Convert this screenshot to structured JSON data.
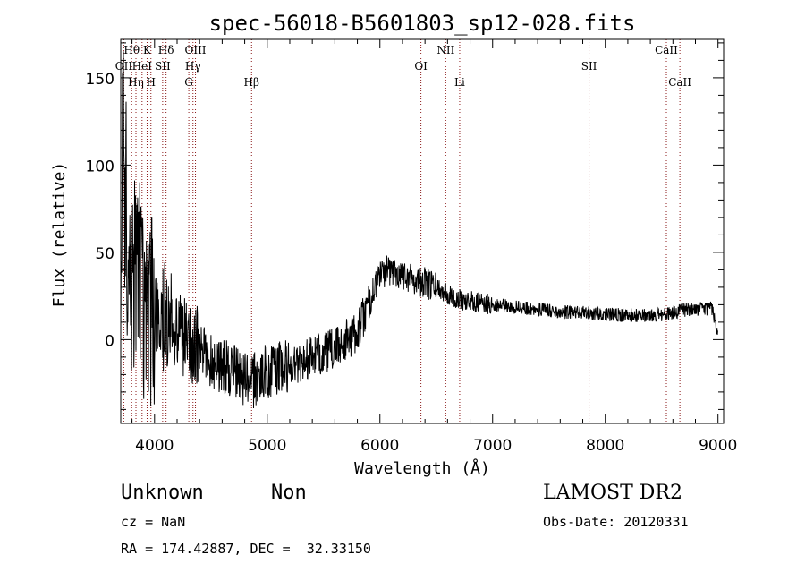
{
  "chart_data": {
    "type": "line",
    "title": "spec-56018-B5601803_sp12-028.fits",
    "xlabel": "Wavelength (Å)",
    "ylabel": "Flux (relative)",
    "xlim": [
      3700,
      9050
    ],
    "ylim": [
      -48,
      172
    ],
    "x_ticks": [
      4000,
      5000,
      6000,
      7000,
      8000,
      9000
    ],
    "x_tick_labels": [
      "4000",
      "5000",
      "6000",
      "7000",
      "8000",
      "9000"
    ],
    "y_ticks": [
      0,
      50,
      100,
      150
    ],
    "y_tick_labels": [
      "0",
      "50",
      "100",
      "150"
    ],
    "line_color": "#000000",
    "marker_color": "#8b1a1a",
    "spectrum_anchors": [
      {
        "x": 3700,
        "y": 20
      },
      {
        "x": 3720,
        "y": 150
      },
      {
        "x": 3750,
        "y": 60
      },
      {
        "x": 3800,
        "y": 35
      },
      {
        "x": 3850,
        "y": 45
      },
      {
        "x": 3900,
        "y": 20
      },
      {
        "x": 4000,
        "y": 15
      },
      {
        "x": 4100,
        "y": 12
      },
      {
        "x": 4300,
        "y": 0
      },
      {
        "x": 4500,
        "y": -12
      },
      {
        "x": 4700,
        "y": -18
      },
      {
        "x": 4850,
        "y": -25
      },
      {
        "x": 5000,
        "y": -18
      },
      {
        "x": 5200,
        "y": -15
      },
      {
        "x": 5400,
        "y": -10
      },
      {
        "x": 5600,
        "y": -5
      },
      {
        "x": 5800,
        "y": 5
      },
      {
        "x": 5900,
        "y": 20
      },
      {
        "x": 6000,
        "y": 38
      },
      {
        "x": 6100,
        "y": 40
      },
      {
        "x": 6300,
        "y": 35
      },
      {
        "x": 6500,
        "y": 30
      },
      {
        "x": 6700,
        "y": 23
      },
      {
        "x": 7000,
        "y": 20
      },
      {
        "x": 7300,
        "y": 18
      },
      {
        "x": 7600,
        "y": 16
      },
      {
        "x": 7900,
        "y": 15
      },
      {
        "x": 8200,
        "y": 14
      },
      {
        "x": 8500,
        "y": 14
      },
      {
        "x": 8700,
        "y": 17
      },
      {
        "x": 8950,
        "y": 18
      },
      {
        "x": 9000,
        "y": 2
      }
    ],
    "line_markers": [
      {
        "label": "Hθ",
        "x": 3797,
        "row": 0
      },
      {
        "label": "OII",
        "x": 3727,
        "row": 1
      },
      {
        "label": "Hη",
        "x": 3835,
        "row": 2
      },
      {
        "label": "HeI",
        "x": 3889,
        "row": 1
      },
      {
        "label": "K",
        "x": 3934,
        "row": 0
      },
      {
        "label": "H",
        "x": 3968,
        "row": 2
      },
      {
        "label": "SII",
        "x": 4072,
        "row": 1
      },
      {
        "label": "Hδ",
        "x": 4102,
        "row": 0
      },
      {
        "label": "G",
        "x": 4304,
        "row": 2
      },
      {
        "label": "Hγ",
        "x": 4341,
        "row": 1
      },
      {
        "label": "OIII",
        "x": 4363,
        "row": 0
      },
      {
        "label": "Hβ",
        "x": 4861,
        "row": 2
      },
      {
        "label": "OI",
        "x": 6364,
        "row": 1
      },
      {
        "label": "NII",
        "x": 6584,
        "row": 0
      },
      {
        "label": "Li",
        "x": 6708,
        "row": 2
      },
      {
        "label": "SII",
        "x": 7856,
        "row": 1
      },
      {
        "label": "CaII",
        "x": 8542,
        "row": 0
      },
      {
        "label": "CaII",
        "x": 8662,
        "row": 2
      }
    ]
  },
  "info": {
    "classification": "Unknown",
    "subclass": "Non",
    "survey": "LAMOST DR2",
    "redshift": "cz = NaN",
    "obs_date": "Obs-Date: 20120331",
    "coords": "RA = 174.42887, DEC =  32.33150"
  }
}
